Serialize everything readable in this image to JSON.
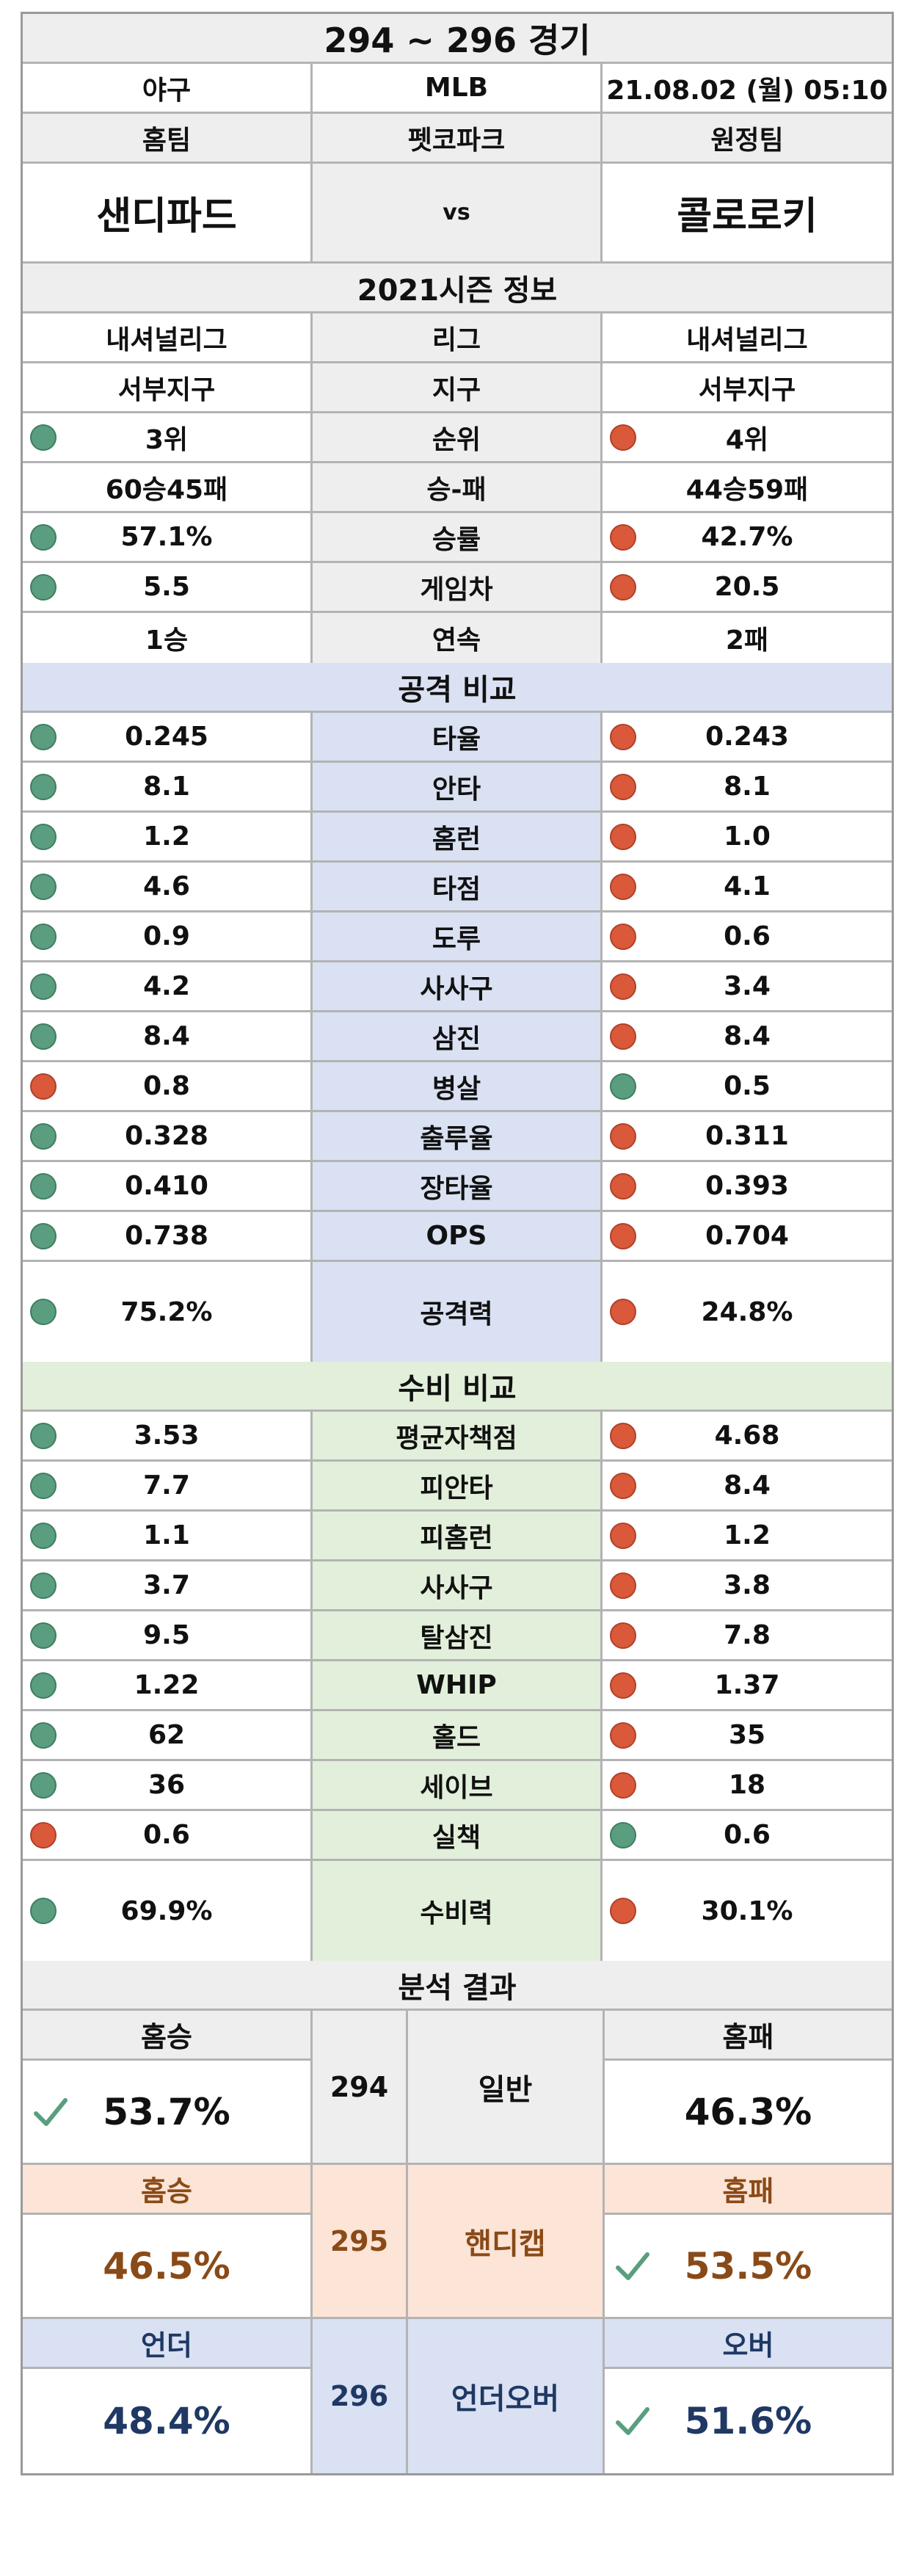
{
  "header": {
    "title": "294 ~ 296 경기",
    "sport": "야구",
    "league": "MLB",
    "datetime": "21.08.02 (월) 05:10",
    "home_label": "홈팀",
    "stadium": "펫코파크",
    "away_label": "원정팀",
    "home_team": "샌디파드",
    "vs": "vs",
    "away_team": "콜로로키"
  },
  "season": {
    "title": "2021시즌 정보",
    "rows": [
      {
        "home": "내셔널리그",
        "label": "리그",
        "away": "내셔널리그",
        "home_dot": "",
        "away_dot": ""
      },
      {
        "home": "서부지구",
        "label": "지구",
        "away": "서부지구",
        "home_dot": "",
        "away_dot": ""
      },
      {
        "home": "3위",
        "label": "순위",
        "away": "4위",
        "home_dot": "green",
        "away_dot": "red"
      },
      {
        "home": "60승45패",
        "label": "승-패",
        "away": "44승59패",
        "home_dot": "",
        "away_dot": ""
      },
      {
        "home": "57.1%",
        "label": "승률",
        "away": "42.7%",
        "home_dot": "green",
        "away_dot": "red"
      },
      {
        "home": "5.5",
        "label": "게임차",
        "away": "20.5",
        "home_dot": "green",
        "away_dot": "red"
      },
      {
        "home": "1승",
        "label": "연속",
        "away": "2패",
        "home_dot": "",
        "away_dot": ""
      }
    ]
  },
  "attack": {
    "title": "공격 비교",
    "rows": [
      {
        "home": "0.245",
        "label": "타율",
        "away": "0.243",
        "home_dot": "green",
        "away_dot": "red"
      },
      {
        "home": "8.1",
        "label": "안타",
        "away": "8.1",
        "home_dot": "green",
        "away_dot": "red"
      },
      {
        "home": "1.2",
        "label": "홈런",
        "away": "1.0",
        "home_dot": "green",
        "away_dot": "red"
      },
      {
        "home": "4.6",
        "label": "타점",
        "away": "4.1",
        "home_dot": "green",
        "away_dot": "red"
      },
      {
        "home": "0.9",
        "label": "도루",
        "away": "0.6",
        "home_dot": "green",
        "away_dot": "red"
      },
      {
        "home": "4.2",
        "label": "사사구",
        "away": "3.4",
        "home_dot": "green",
        "away_dot": "red"
      },
      {
        "home": "8.4",
        "label": "삼진",
        "away": "8.4",
        "home_dot": "green",
        "away_dot": "red"
      },
      {
        "home": "0.8",
        "label": "병살",
        "away": "0.5",
        "home_dot": "red",
        "away_dot": "green"
      },
      {
        "home": "0.328",
        "label": "출루율",
        "away": "0.311",
        "home_dot": "green",
        "away_dot": "red"
      },
      {
        "home": "0.410",
        "label": "장타율",
        "away": "0.393",
        "home_dot": "green",
        "away_dot": "red"
      },
      {
        "home": "0.738",
        "label": "OPS",
        "away": "0.704",
        "home_dot": "green",
        "away_dot": "red"
      }
    ],
    "power": {
      "home": "75.2%",
      "label": "공격력",
      "away": "24.8%",
      "home_dot": "green",
      "away_dot": "red"
    }
  },
  "defense": {
    "title": "수비 비교",
    "rows": [
      {
        "home": "3.53",
        "label": "평균자책점",
        "away": "4.68",
        "home_dot": "green",
        "away_dot": "red"
      },
      {
        "home": "7.7",
        "label": "피안타",
        "away": "8.4",
        "home_dot": "green",
        "away_dot": "red"
      },
      {
        "home": "1.1",
        "label": "피홈런",
        "away": "1.2",
        "home_dot": "green",
        "away_dot": "red"
      },
      {
        "home": "3.7",
        "label": "사사구",
        "away": "3.8",
        "home_dot": "green",
        "away_dot": "red"
      },
      {
        "home": "9.5",
        "label": "탈삼진",
        "away": "7.8",
        "home_dot": "green",
        "away_dot": "red"
      },
      {
        "home": "1.22",
        "label": "WHIP",
        "away": "1.37",
        "home_dot": "green",
        "away_dot": "red"
      },
      {
        "home": "62",
        "label": "홀드",
        "away": "35",
        "home_dot": "green",
        "away_dot": "red"
      },
      {
        "home": "36",
        "label": "세이브",
        "away": "18",
        "home_dot": "green",
        "away_dot": "red"
      },
      {
        "home": "0.6",
        "label": "실책",
        "away": "0.6",
        "home_dot": "red",
        "away_dot": "green"
      }
    ],
    "power": {
      "home": "69.9%",
      "label": "수비력",
      "away": "30.1%",
      "home_dot": "green",
      "away_dot": "red"
    }
  },
  "analysis": {
    "title": "분석 결과",
    "results": [
      {
        "left_label": "홈승",
        "left_value": "53.7%",
        "num": "294",
        "kind": "일반",
        "right_label": "홈패",
        "right_value": "46.3%",
        "check": "left",
        "theme": "grey"
      },
      {
        "left_label": "홈승",
        "left_value": "46.5%",
        "num": "295",
        "kind": "핸디캡",
        "right_label": "홈패",
        "right_value": "53.5%",
        "check": "right",
        "theme": "peach"
      },
      {
        "left_label": "언더",
        "left_value": "48.4%",
        "num": "296",
        "kind": "언더오버",
        "right_label": "오버",
        "right_value": "51.6%",
        "check": "right",
        "theme": "blue"
      }
    ]
  },
  "colors": {
    "green_dot": "#5a9e7f",
    "red_dot": "#d9593a",
    "check": "#5a9e7f",
    "peach_text": "#8a4a17",
    "blue_text": "#1f3864"
  }
}
